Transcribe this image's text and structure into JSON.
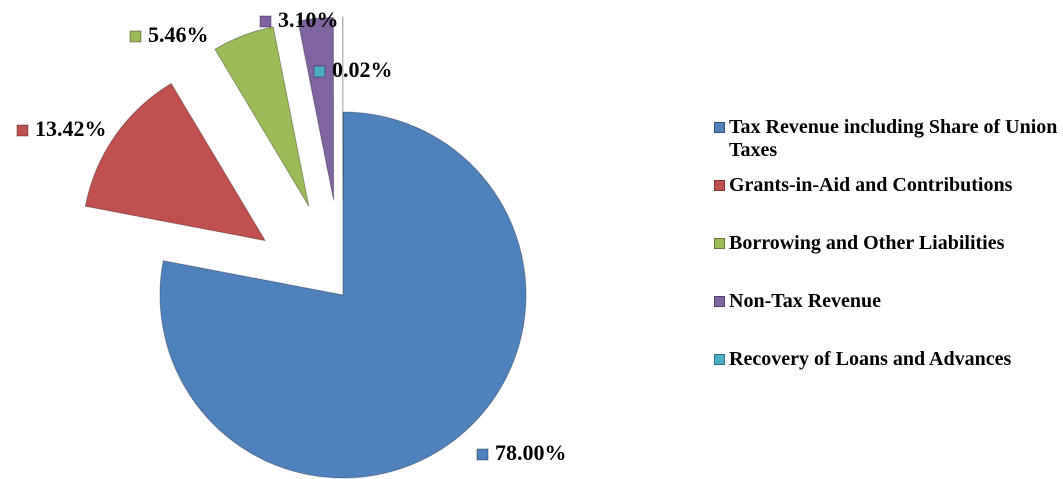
{
  "chart_data": {
    "type": "pie",
    "categories": [
      "Tax Revenue including Share of Union Taxes",
      "Grants-in-Aid and Contributions",
      "Borrowing and Other Liabilities",
      "Non-Tax Revenue",
      "Recovery of Loans and Advances"
    ],
    "values": [
      78.0,
      13.42,
      5.46,
      3.1,
      0.02
    ],
    "value_labels": [
      "78.00%",
      "13.42%",
      "5.46%",
      "3.10%",
      "0.02%"
    ],
    "colors": [
      "#4f81bd",
      "#c0504d",
      "#9bbb59",
      "#8064a2",
      "#4bacc6"
    ],
    "legend": "right"
  }
}
